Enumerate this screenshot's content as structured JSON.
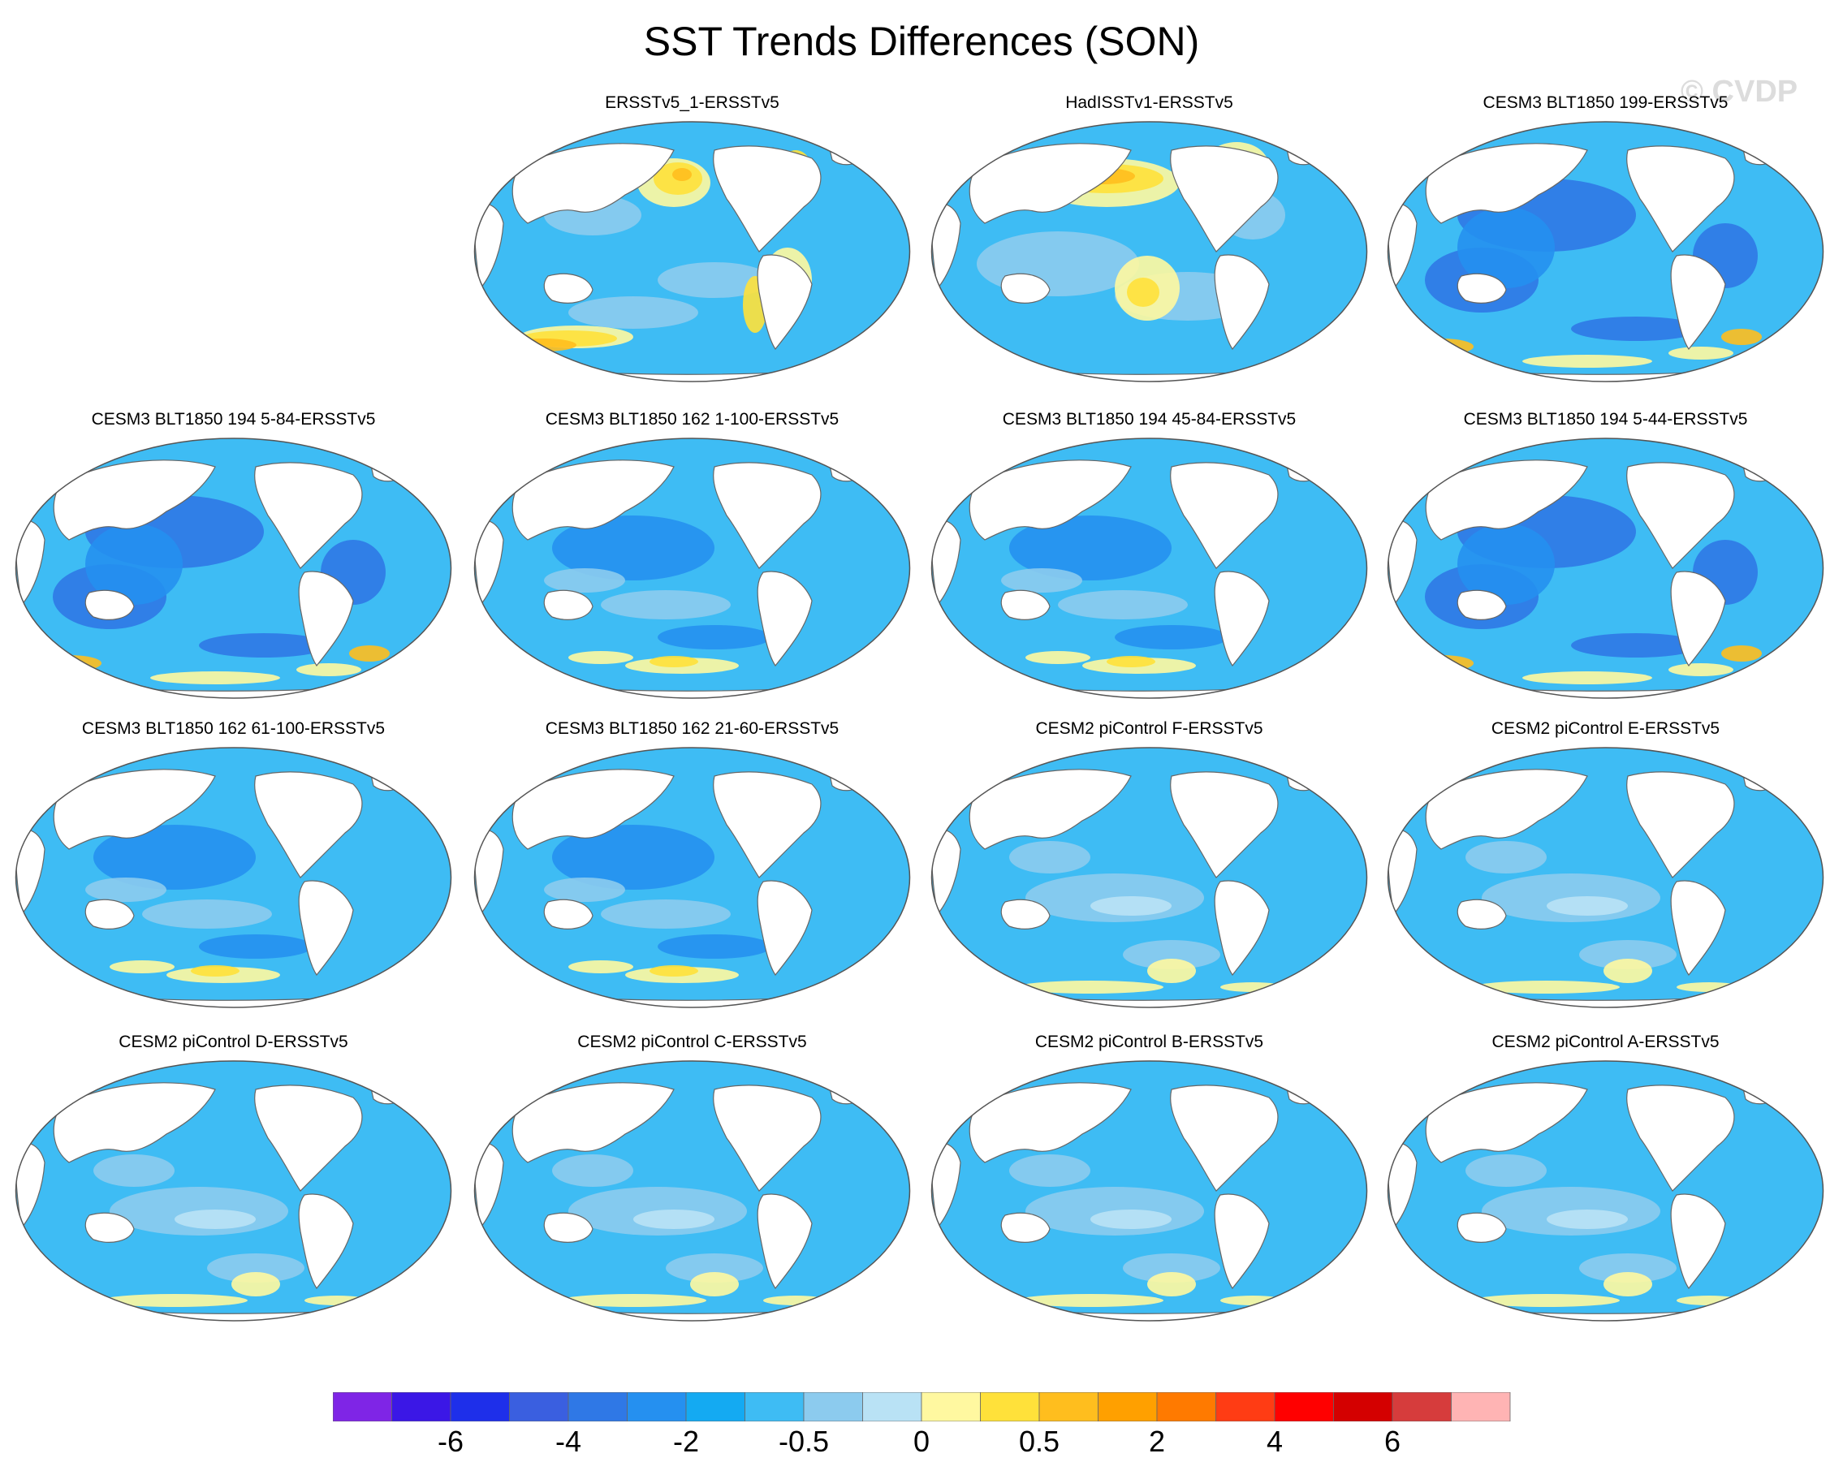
{
  "title": "SST Trends Differences (SON)",
  "watermark": "© CVDP",
  "panels": [
    {
      "label": "ERSSTv5_1-ERSSTv5",
      "tone": "warm"
    },
    {
      "label": "HadISSTv1-ERSSTv5",
      "tone": "warm2"
    },
    {
      "label": "CESM3 BLT1850 199-ERSSTv5",
      "tone": "cold"
    },
    {
      "label": "CESM3 BLT1850 194 5-84-ERSSTv5",
      "tone": "cold"
    },
    {
      "label": "CESM3 BLT1850 162 1-100-ERSSTv5",
      "tone": "mid"
    },
    {
      "label": "CESM3 BLT1850 194 45-84-ERSSTv5",
      "tone": "mid"
    },
    {
      "label": "CESM3 BLT1850 194 5-44-ERSSTv5",
      "tone": "cold"
    },
    {
      "label": "CESM3 BLT1850 162 61-100-ERSSTv5",
      "tone": "mid"
    },
    {
      "label": "CESM3 BLT1850 162 21-60-ERSSTv5",
      "tone": "mid"
    },
    {
      "label": "CESM2 piControl F-ERSSTv5",
      "tone": "light"
    },
    {
      "label": "CESM2 piControl E-ERSSTv5",
      "tone": "light"
    },
    {
      "label": "CESM2 piControl D-ERSSTv5",
      "tone": "light"
    },
    {
      "label": "CESM2 piControl C-ERSSTv5",
      "tone": "light"
    },
    {
      "label": "CESM2 piControl B-ERSSTv5",
      "tone": "light"
    },
    {
      "label": "CESM2 piControl A-ERSSTv5",
      "tone": "light"
    }
  ],
  "colorbar": {
    "colors": [
      "#7f25e6",
      "#3b17e6",
      "#1e2fea",
      "#3a5fe0",
      "#2f78e6",
      "#2590f0",
      "#14aaf2",
      "#3ebcf4",
      "#8ccbee",
      "#b9e2f5",
      "#fff8a0",
      "#ffe13a",
      "#ffbe1e",
      "#ffa000",
      "#ff7a00",
      "#ff3c14",
      "#ff0000",
      "#d40000",
      "#d63c3c",
      "#ffb4b4"
    ],
    "labels": [
      "-6",
      "-4",
      "-2",
      "-0.5",
      "0",
      "0.5",
      "2",
      "4",
      "6"
    ]
  },
  "colors": {
    "land": "#ffffff",
    "coast": "#666666",
    "ocean_base": "#3ebcf4"
  }
}
